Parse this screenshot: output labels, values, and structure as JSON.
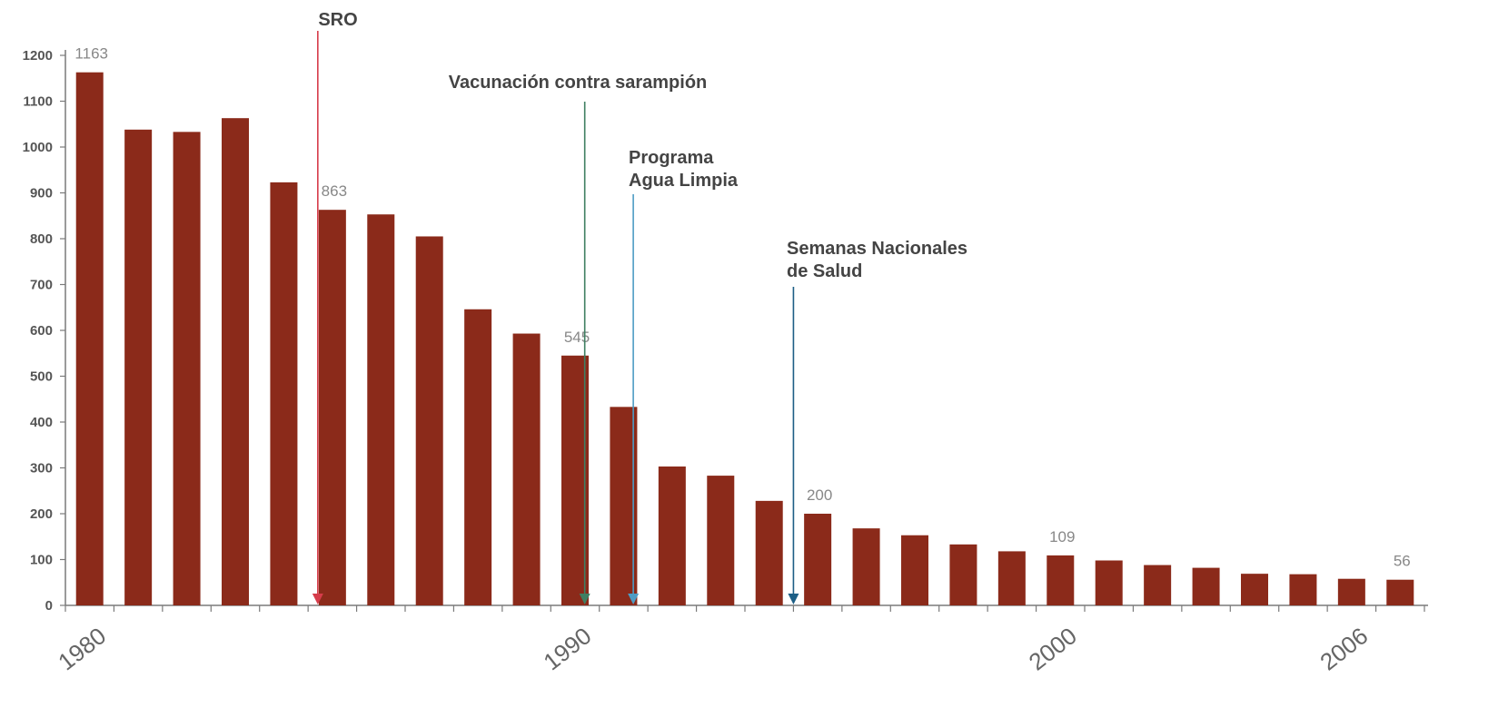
{
  "chart_data": {
    "type": "bar",
    "title": "",
    "xlabel": "",
    "ylabel": "",
    "ylim": [
      0,
      1200
    ],
    "yticks": [
      0,
      100,
      200,
      300,
      400,
      500,
      600,
      700,
      800,
      900,
      1000,
      1100,
      1200
    ],
    "grid": false,
    "legend": "none",
    "bar_color": "#8b2a1a",
    "x": [
      1980,
      1981,
      1982,
      1983,
      1984,
      1985,
      1986,
      1987,
      1988,
      1989,
      1990,
      1991,
      1992,
      1993,
      1994,
      1995,
      1996,
      1997,
      1998,
      1999,
      2000,
      2001,
      2002,
      2003,
      2004,
      2005,
      2006,
      2007
    ],
    "values": [
      1163,
      1038,
      1033,
      1063,
      923,
      863,
      853,
      805,
      646,
      593,
      545,
      433,
      303,
      283,
      228,
      200,
      168,
      153,
      133,
      118,
      109,
      98,
      88,
      82,
      69,
      68,
      58,
      56
    ],
    "xtick_labels": [
      {
        "year": 1980,
        "label": "1980"
      },
      {
        "year": 1990,
        "label": "1990"
      },
      {
        "year": 2000,
        "label": "2000"
      },
      {
        "year": 2006,
        "label": "2006"
      }
    ],
    "data_labels": [
      {
        "year": 1980,
        "label": "1163"
      },
      {
        "year": 1985,
        "label": "863"
      },
      {
        "year": 1990,
        "label": "545"
      },
      {
        "year": 1995,
        "label": "200"
      },
      {
        "year": 2000,
        "label": "109"
      },
      {
        "year": 2007,
        "label": "56"
      }
    ],
    "annotations": [
      {
        "name": "annotation-sro",
        "lines": [
          "SRO"
        ],
        "year": 1984.7,
        "color": "#d63c4a"
      },
      {
        "name": "annotation-vacunacion",
        "lines": [
          "Vacunación contra sarampión"
        ],
        "year": 1990.2,
        "color": "#3f7f62"
      },
      {
        "name": "annotation-agua-limpia",
        "lines": [
          "Programa",
          "Agua Limpia"
        ],
        "year": 1991.2,
        "color": "#4e9cc4"
      },
      {
        "name": "annotation-semanas-salud",
        "lines": [
          "Semanas Nacionales",
          "de Salud"
        ],
        "year": 1994.5,
        "color": "#1d5f86"
      }
    ]
  }
}
